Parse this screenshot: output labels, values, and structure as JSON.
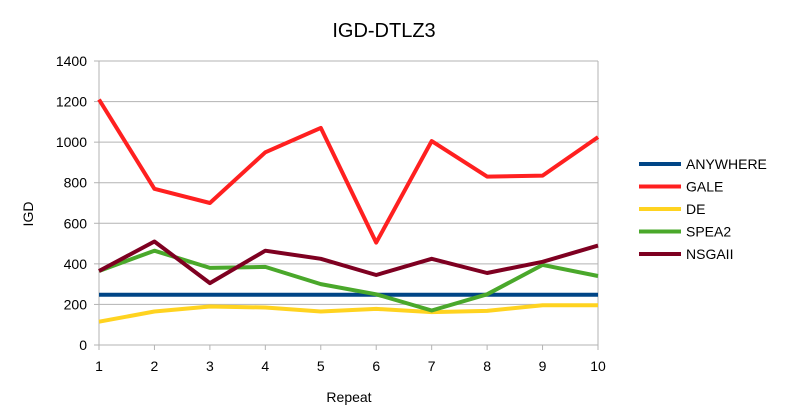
{
  "chart_data": {
    "type": "line",
    "title": "IGD-DTLZ3",
    "xlabel": "Repeat",
    "ylabel": "IGD",
    "x": [
      1,
      2,
      3,
      4,
      5,
      6,
      7,
      8,
      9,
      10
    ],
    "ylim": [
      0,
      1400
    ],
    "yticks": [
      0,
      200,
      400,
      600,
      800,
      1000,
      1200,
      1400
    ],
    "grid": "horizontal",
    "legend_position": "right",
    "series": [
      {
        "name": "ANYWHERE",
        "color": "#004586",
        "values": [
          248,
          248,
          248,
          248,
          248,
          248,
          248,
          248,
          248,
          248
        ]
      },
      {
        "name": "GALE",
        "color": "#ff2020",
        "values": [
          1210,
          770,
          700,
          950,
          1070,
          505,
          1005,
          830,
          835,
          1025
        ]
      },
      {
        "name": "DE",
        "color": "#ffd320",
        "values": [
          115,
          165,
          190,
          185,
          165,
          178,
          162,
          168,
          196,
          196
        ]
      },
      {
        "name": "SPEA2",
        "color": "#4aa82b",
        "values": [
          365,
          465,
          380,
          385,
          300,
          250,
          170,
          250,
          395,
          340
        ]
      },
      {
        "name": "NSGAII",
        "color": "#7e0021",
        "values": [
          365,
          510,
          305,
          465,
          425,
          345,
          425,
          355,
          410,
          490
        ]
      }
    ]
  }
}
